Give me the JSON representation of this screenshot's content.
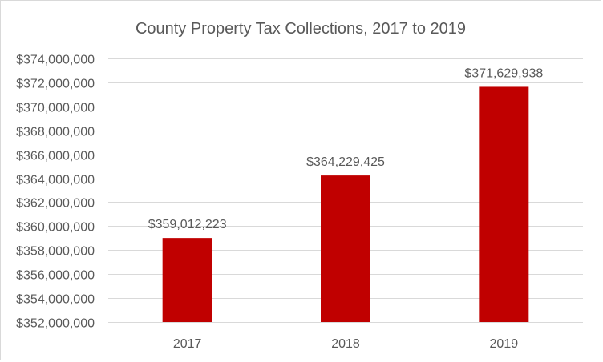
{
  "chart_data": {
    "type": "bar",
    "title": "County Property Tax Collections, 2017 to 2019",
    "xlabel": "",
    "ylabel": "",
    "categories": [
      "2017",
      "2018",
      "2019"
    ],
    "values": [
      359012223,
      364229425,
      371629938
    ],
    "data_labels": [
      "$359,012,223",
      "$364,229,425",
      "$371,629,938"
    ],
    "ylim": [
      352000000,
      374000000
    ],
    "yticks": [
      352000000,
      354000000,
      356000000,
      358000000,
      360000000,
      362000000,
      364000000,
      366000000,
      368000000,
      370000000,
      372000000,
      374000000
    ],
    "ytick_labels": [
      "$352,000,000",
      "$354,000,000",
      "$356,000,000",
      "$358,000,000",
      "$360,000,000",
      "$362,000,000",
      "$364,000,000",
      "$366,000,000",
      "$368,000,000",
      "$370,000,000",
      "$372,000,000",
      "$374,000,000"
    ],
    "grid": true,
    "legend": "none",
    "colors": {
      "bar": "#C00000",
      "grid": "#D9D9D9",
      "text": "#595959"
    }
  }
}
